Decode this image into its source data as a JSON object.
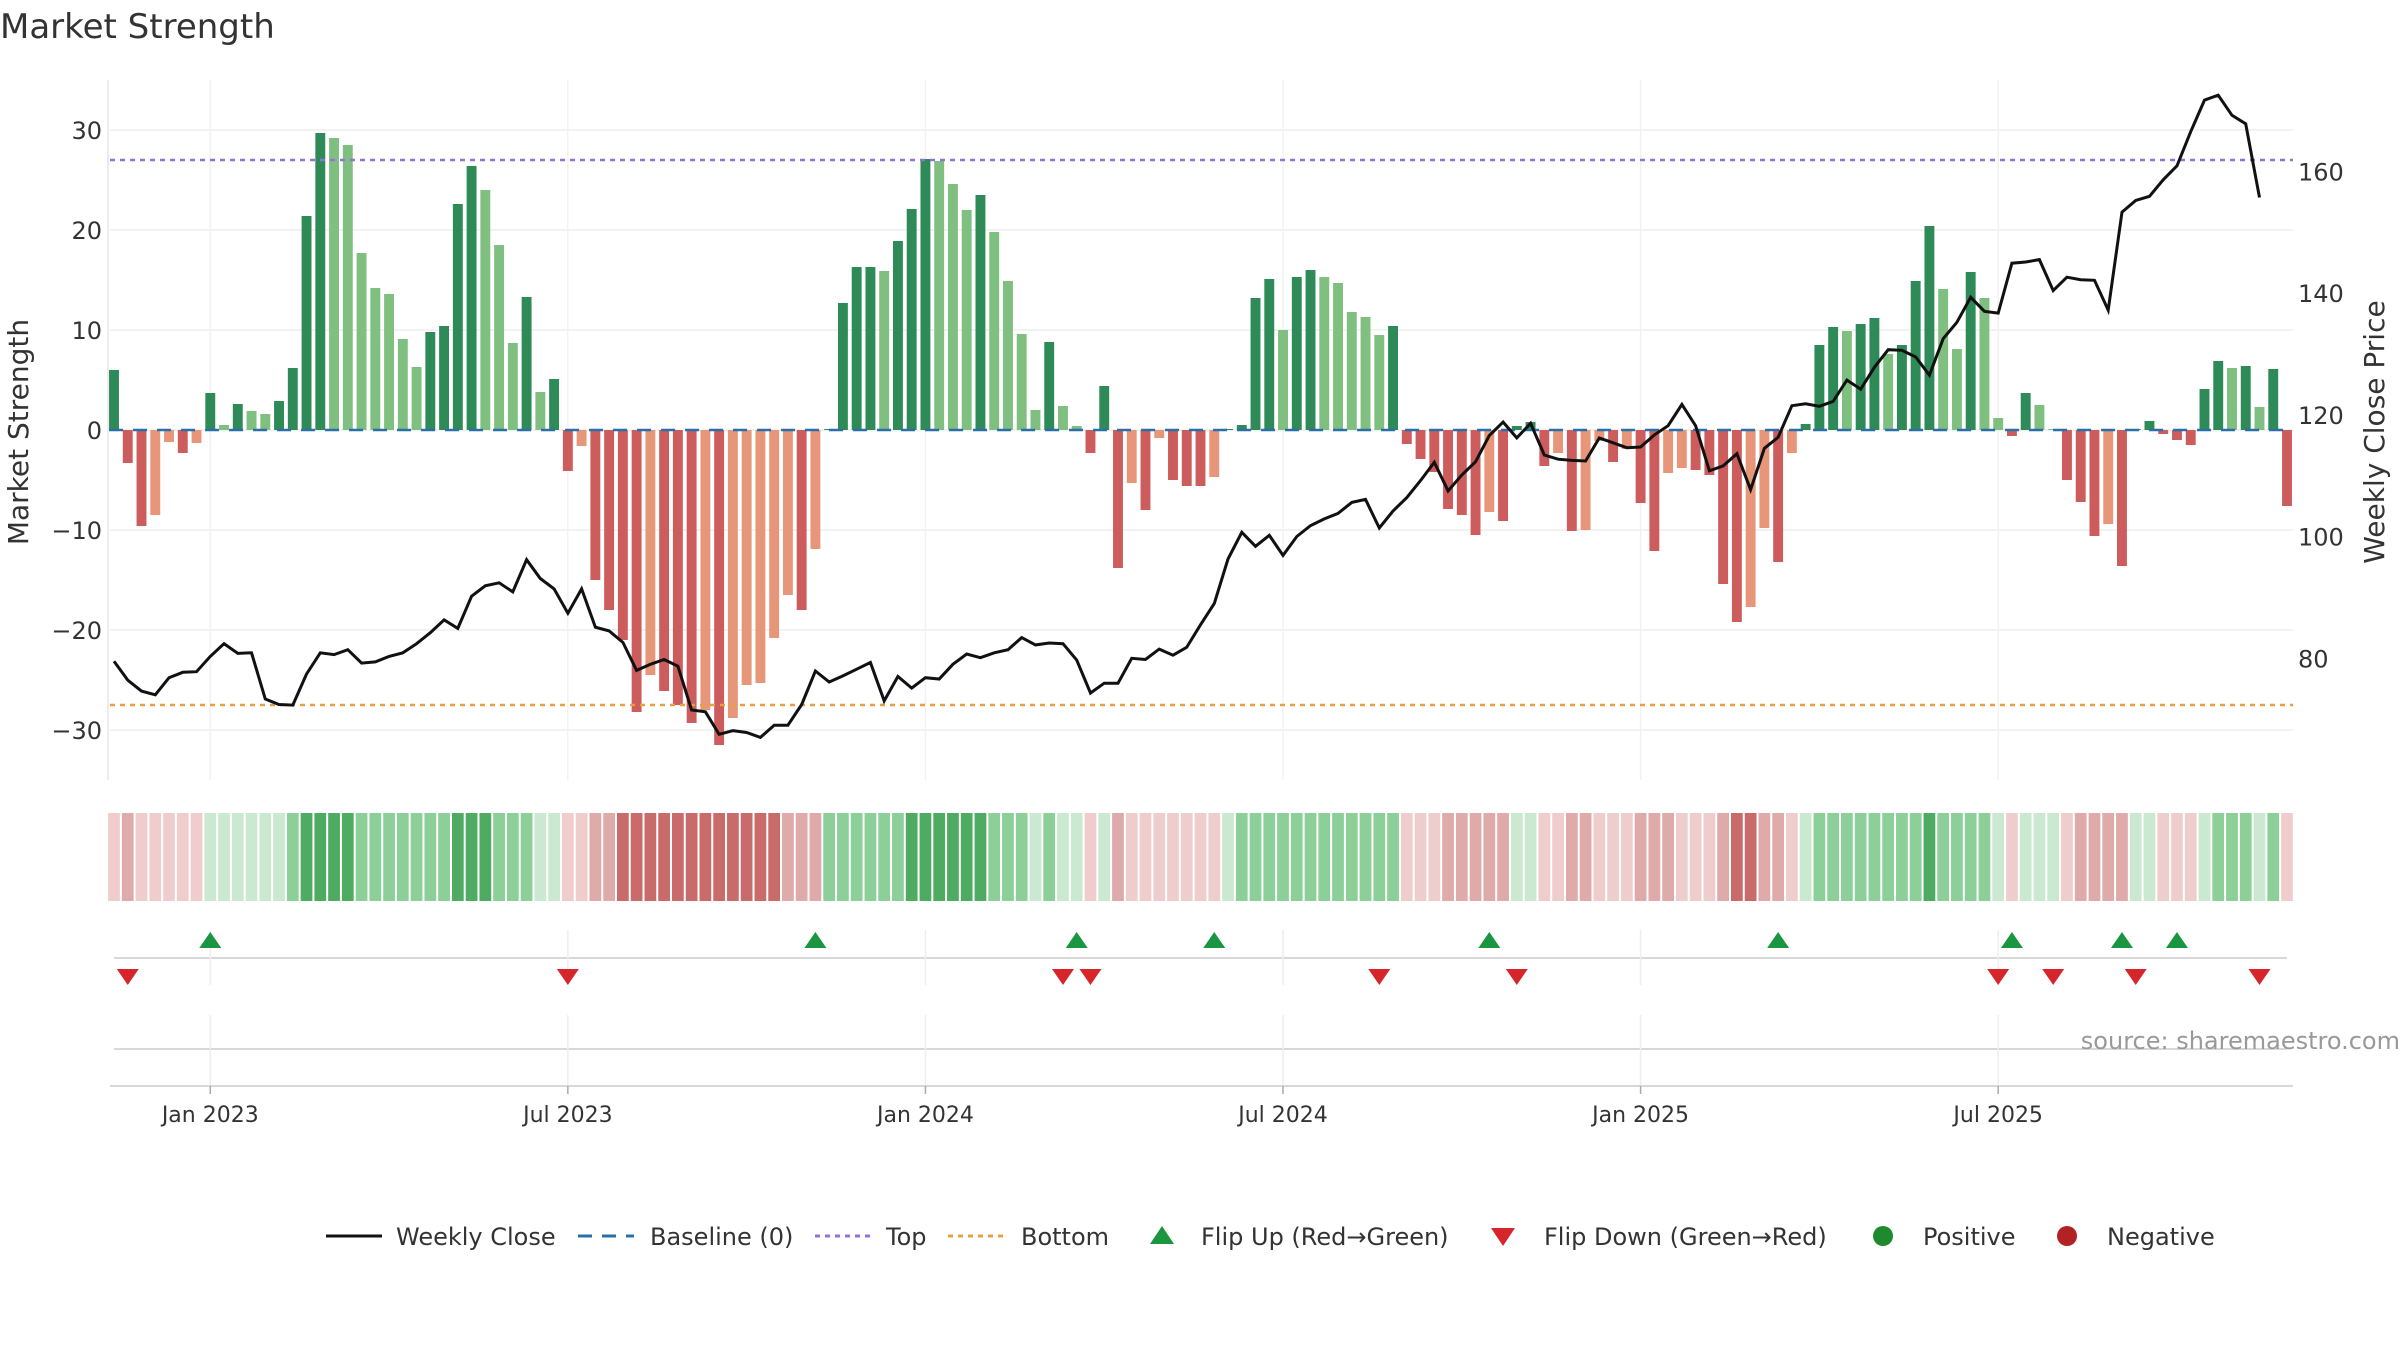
{
  "chart_data": {
    "type": "bar",
    "title": "Market Strength",
    "ylabel_left": "Market Strength",
    "ylabel_right": "Weekly Close Price",
    "ylim_left": [
      -35,
      35
    ],
    "ylim_right": [
      60,
      175
    ],
    "yticks_left": [
      30,
      20,
      10,
      0,
      -10,
      -20,
      -30
    ],
    "ytick_labels_left": [
      "30",
      "20",
      "10",
      "0",
      "−10",
      "−20",
      "−30"
    ],
    "yticks_right": [
      160,
      140,
      120,
      100,
      80
    ],
    "ytick_labels_right": [
      "160",
      "140",
      "120",
      "100",
      "80"
    ],
    "x_labels": [
      "Jan 2023",
      "Jul 2023",
      "Jan 2024",
      "Jul 2024",
      "Jan 2025",
      "Jul 2025"
    ],
    "x_label_weeks": [
      7,
      33,
      59,
      85,
      111,
      137
    ],
    "top_line": 27,
    "bottom_line": -27.5,
    "grid": true,
    "source": "source: sharemaestro.com",
    "legend_position": "bottom-center",
    "legend": [
      "Weekly Close",
      "Baseline (0)",
      "Top",
      "Bottom",
      "Flip Up (Red→Green)",
      "Flip Down (Green→Red)",
      "Positive",
      "Negative"
    ],
    "strength": [
      6,
      -3.3,
      -9.6,
      -8.5,
      -1.2,
      -2.3,
      -1.3,
      3.7,
      0.5,
      2.6,
      1.9,
      1.6,
      2.9,
      6.2,
      21.4,
      29.7,
      29.2,
      28.5,
      17.7,
      14.2,
      13.6,
      9.1,
      6.3,
      9.8,
      10.4,
      22.6,
      26.4,
      24,
      18.5,
      8.7,
      13.3,
      3.8,
      5.1,
      -4.1,
      -1.6,
      -15,
      -18,
      -21,
      -28.2,
      -24.5,
      -26.1,
      -27.5,
      -29.3,
      -28,
      -31.5,
      -28.8,
      -25.5,
      -25.3,
      -20.8,
      -16.5,
      -18,
      -11.9,
      0.1,
      12.7,
      16.3,
      16.3,
      15.9,
      18.9,
      22.1,
      27.1,
      26.9,
      24.6,
      22,
      23.5,
      19.8,
      14.9,
      9.6,
      2,
      8.8,
      2.4,
      0.4,
      -2.3,
      4.4,
      -13.8,
      -5.3,
      -8,
      -0.8,
      -5,
      -5.6,
      -5.6,
      -4.7,
      0.1,
      0.5,
      13.2,
      15.1,
      10,
      15.3,
      16,
      15.3,
      14.7,
      11.8,
      11.3,
      9.5,
      10.4,
      -1.4,
      -2.9,
      -4.2,
      -7.9,
      -8.5,
      -10.5,
      -8.2,
      -9.1,
      0.4,
      0.8,
      -3.6,
      -2.3,
      -10.1,
      -10,
      -1.1,
      -3.2,
      -1.9,
      -7.3,
      -12.1,
      -4.3,
      -3.8,
      -4,
      -4.5,
      -15.4,
      -19.2,
      -17.7,
      -9.8,
      -13.2,
      -2.3,
      0.6,
      8.5,
      10.3,
      9.9,
      10.6,
      11.2,
      7.6,
      8.5,
      14.9,
      20.4,
      14.1,
      8.1,
      15.8,
      13.2,
      1.2,
      -0.6,
      3.7,
      2.5,
      0.1,
      -5,
      -7.2,
      -10.6,
      -9.4,
      -13.6,
      0.1,
      0.9,
      -0.4,
      -1,
      -1.5,
      4.1,
      6.9,
      6.2,
      6.4,
      2.3,
      6.1,
      -7.6
    ],
    "weekly_close": [
      79.5,
      76.4,
      74.6,
      74,
      76.8,
      77.7,
      77.8,
      80.3,
      82.4,
      80.8,
      80.9,
      73.3,
      72.4,
      72.3,
      77.4,
      80.9,
      80.6,
      81.4,
      79.2,
      79.4,
      80.3,
      80.9,
      82.4,
      84.2,
      86.3,
      84.9,
      90.2,
      91.9,
      92.4,
      90.9,
      96.2,
      93.1,
      91.4,
      87.4,
      91.4,
      85.1,
      84.5,
      82.6,
      78,
      79,
      79.8,
      78.7,
      71.5,
      71.2,
      67.5,
      68.1,
      67.8,
      67,
      69,
      69,
      72.4,
      77.9,
      76.1,
      77.1,
      78.2,
      79.3,
      73,
      77,
      75.1,
      76.8,
      76.6,
      79,
      80.7,
      80.1,
      80.9,
      81.4,
      83.4,
      82.2,
      82.5,
      82.4,
      79.7,
      74.3,
      75.9,
      75.9,
      80,
      79.8,
      81.5,
      80.5,
      81.8,
      85.5,
      89,
      96.3,
      100.7,
      98.4,
      100.2,
      96.9,
      100,
      101.8,
      102.9,
      103.8,
      105.6,
      106.1,
      101.4,
      104.2,
      106.4,
      109.2,
      112.2,
      107.5,
      110.1,
      112.3,
      116.6,
      118.8,
      116.2,
      118.6,
      113.4,
      112.7,
      112.5,
      112.4,
      116.2,
      115.4,
      114.6,
      114.7,
      116.7,
      118.2,
      121.7,
      118.2,
      110.8,
      111.6,
      113.6,
      107.7,
      114.5,
      116.3,
      121.5,
      121.8,
      121.4,
      122.2,
      125.7,
      124.2,
      127.8,
      130.7,
      130.6,
      129.5,
      126.5,
      132.5,
      135.2,
      139.3,
      137,
      136.7,
      144.9,
      145.1,
      145.5,
      140.4,
      142.6,
      142.2,
      142.1,
      137.2,
      153.3,
      155.2,
      155.9,
      158.6,
      160.9,
      166.5,
      171.7,
      172.5,
      169.2,
      167.8,
      155.7
    ],
    "shade_levels": [
      -1,
      -2,
      -1,
      -1,
      -1,
      -1,
      -1,
      1,
      1,
      1,
      1,
      1,
      1,
      2,
      3,
      3,
      3,
      3,
      2,
      2,
      2,
      2,
      2,
      2,
      2,
      3,
      3,
      3,
      2,
      2,
      2,
      1,
      1,
      -1,
      -1,
      -2,
      -2,
      -3,
      -3,
      -3,
      -3,
      -3,
      -3,
      -3,
      -3,
      -3,
      -3,
      -3,
      -3,
      -2,
      -2,
      -2,
      2,
      2,
      2,
      2,
      2,
      2,
      3,
      3,
      3,
      3,
      3,
      3,
      2,
      2,
      2,
      1,
      2,
      1,
      1,
      -1,
      1,
      -2,
      -1,
      -1,
      -1,
      -1,
      -1,
      -1,
      -1,
      1,
      2,
      2,
      2,
      2,
      2,
      2,
      2,
      2,
      2,
      2,
      2,
      2,
      -1,
      -1,
      -1,
      -2,
      -2,
      -2,
      -2,
      -2,
      1,
      1,
      -1,
      -1,
      -2,
      -2,
      -1,
      -1,
      -1,
      -2,
      -2,
      -2,
      -1,
      -1,
      -1,
      -2,
      -3,
      -3,
      -2,
      -2,
      -1,
      1,
      2,
      2,
      2,
      2,
      2,
      2,
      2,
      2,
      3,
      2,
      2,
      2,
      2,
      1,
      -1,
      1,
      1,
      1,
      -1,
      -2,
      -2,
      -2,
      -2,
      1,
      1,
      -1,
      -1,
      -1,
      1,
      2,
      2,
      2,
      1,
      2,
      -1
    ],
    "flip_up_weeks": [
      7,
      51,
      70,
      80,
      100,
      121,
      138,
      146,
      150
    ],
    "flip_down_weeks": [
      1,
      33,
      69,
      71,
      92,
      102,
      137,
      141,
      147,
      156
    ]
  }
}
